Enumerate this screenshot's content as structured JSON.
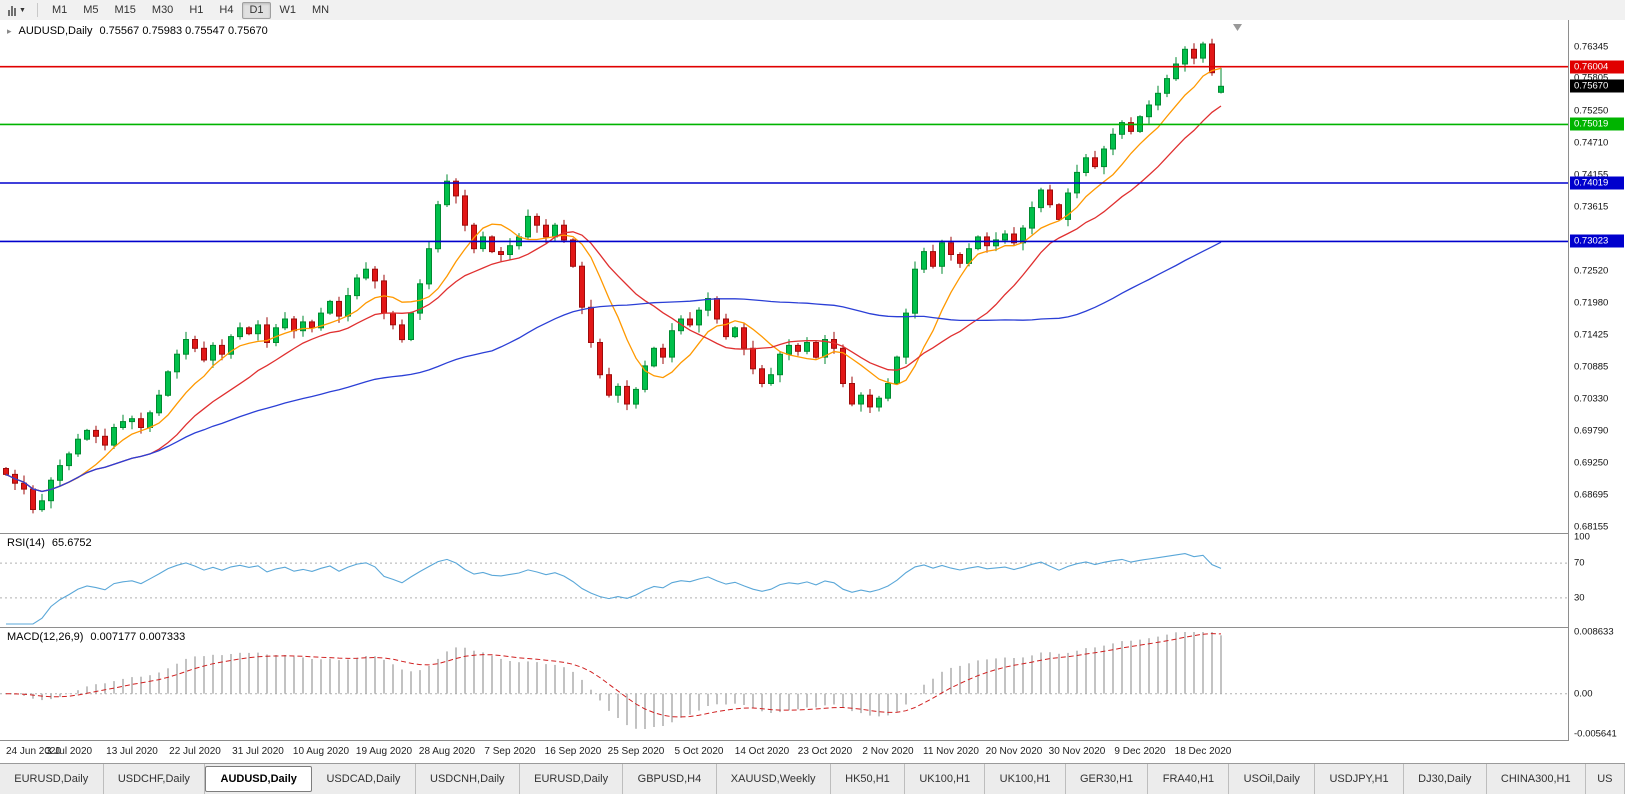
{
  "icons": {
    "chart_type_caret": "▼",
    "one_click_arrow": "▸"
  },
  "toolbar": {
    "timeframes": [
      "M1",
      "M5",
      "M15",
      "M30",
      "H1",
      "H4",
      "D1",
      "W1",
      "MN"
    ],
    "selected": "D1"
  },
  "chart_header": {
    "symbol": "AUDUSD,Daily",
    "ohlc": "0.75567 0.75983 0.75547 0.75670"
  },
  "chart_data": {
    "type": "candlestick",
    "symbol": "AUDUSD",
    "timeframe": "Daily",
    "ylim": [
      0.6805,
      0.768
    ],
    "first_open": 0.6915,
    "closes": [
      0.6905,
      0.689,
      0.688,
      0.6845,
      0.686,
      0.6895,
      0.692,
      0.694,
      0.6965,
      0.698,
      0.697,
      0.6955,
      0.6985,
      0.6995,
      0.7,
      0.6985,
      0.701,
      0.704,
      0.708,
      0.711,
      0.7135,
      0.712,
      0.71,
      0.7125,
      0.711,
      0.714,
      0.7155,
      0.7145,
      0.716,
      0.713,
      0.7155,
      0.717,
      0.715,
      0.7165,
      0.7155,
      0.718,
      0.72,
      0.7175,
      0.721,
      0.724,
      0.7255,
      0.7235,
      0.718,
      0.716,
      0.7135,
      0.718,
      0.723,
      0.729,
      0.7365,
      0.7405,
      0.738,
      0.733,
      0.729,
      0.731,
      0.7285,
      0.728,
      0.7295,
      0.731,
      0.7345,
      0.733,
      0.731,
      0.733,
      0.7305,
      0.726,
      0.719,
      0.713,
      0.7075,
      0.704,
      0.7055,
      0.7025,
      0.705,
      0.709,
      0.712,
      0.7105,
      0.715,
      0.717,
      0.716,
      0.7185,
      0.7205,
      0.717,
      0.714,
      0.7155,
      0.712,
      0.7085,
      0.706,
      0.7075,
      0.711,
      0.7125,
      0.7115,
      0.713,
      0.7105,
      0.7135,
      0.712,
      0.706,
      0.7025,
      0.704,
      0.702,
      0.7035,
      0.706,
      0.7105,
      0.718,
      0.7255,
      0.7285,
      0.726,
      0.73,
      0.728,
      0.7265,
      0.729,
      0.731,
      0.7295,
      0.7305,
      0.7315,
      0.73,
      0.7325,
      0.736,
      0.739,
      0.7365,
      0.734,
      0.7385,
      0.742,
      0.7445,
      0.743,
      0.746,
      0.7485,
      0.7505,
      0.749,
      0.7515,
      0.7535,
      0.7555,
      0.758,
      0.7605,
      0.763,
      0.7615,
      0.7639,
      0.759,
      0.7567
    ],
    "last_bar": [
      0.75567,
      0.75983,
      0.75547,
      0.7567
    ],
    "candle_colors": {
      "up": "#00c04b",
      "up_stroke": "#008a30",
      "down": "#e21717",
      "down_stroke": "#9e0b0b"
    },
    "moving_averages": [
      {
        "period": 8,
        "color": "#ff9900"
      },
      {
        "period": 17,
        "color": "#e03030"
      },
      {
        "period": 55,
        "color": "#2b3fd6"
      }
    ],
    "levels": [
      {
        "price": 0.76004,
        "label": "0.76004",
        "color": "#e00000"
      },
      {
        "price": 0.75019,
        "label": "0.75019",
        "color": "#00b400"
      },
      {
        "price": 0.74019,
        "label": "0.74019",
        "color": "#0000cd"
      },
      {
        "price": 0.73023,
        "label": "0.73023",
        "color": "#0000cd"
      }
    ],
    "current_price": {
      "price": 0.7567,
      "label": "0.75670",
      "color": "#000000"
    },
    "y_ticks": [
      "0.76345",
      "0.75805",
      "0.75250",
      "0.74710",
      "0.74155",
      "0.73615",
      "0.73070",
      "0.72520",
      "0.71980",
      "0.71425",
      "0.70885",
      "0.70330",
      "0.69790",
      "0.69250",
      "0.68695",
      "0.68155"
    ],
    "x_dates": [
      {
        "label": "24 Jun 2020",
        "candle": 0
      },
      {
        "label": "3 Jul 2020",
        "candle": 7
      },
      {
        "label": "13 Jul 2020",
        "candle": 14
      },
      {
        "label": "22 Jul 2020",
        "candle": 21
      },
      {
        "label": "31 Jul 2020",
        "candle": 28
      },
      {
        "label": "10 Aug 2020",
        "candle": 35
      },
      {
        "label": "19 Aug 2020",
        "candle": 42
      },
      {
        "label": "28 Aug 2020",
        "candle": 49
      },
      {
        "label": "7 Sep 2020",
        "candle": 56
      },
      {
        "label": "16 Sep 2020",
        "candle": 63
      },
      {
        "label": "25 Sep 2020",
        "candle": 70
      },
      {
        "label": "5 Oct 2020",
        "candle": 77
      },
      {
        "label": "14 Oct 2020",
        "candle": 84
      },
      {
        "label": "23 Oct 2020",
        "candle": 91
      },
      {
        "label": "2 Nov 2020",
        "candle": 98
      },
      {
        "label": "11 Nov 2020",
        "candle": 105
      },
      {
        "label": "20 Nov 2020",
        "candle": 112
      },
      {
        "label": "30 Nov 2020",
        "candle": 119
      },
      {
        "label": "9 Dec 2020",
        "candle": 126
      },
      {
        "label": "18 Dec 2020",
        "candle": 133
      }
    ],
    "rsi": {
      "label": "RSI(14)",
      "value": "65.6752",
      "period": 14,
      "levels": [
        30,
        70
      ],
      "axis_values": [
        100,
        70,
        30
      ],
      "axis_labels": [
        "100",
        "70",
        "30"
      ],
      "line_color": "#5aa7d8",
      "level_color": "#b0b0b0"
    },
    "macd": {
      "label": "MACD(12,26,9)",
      "values": "0.007177 0.007333",
      "fast": 12,
      "slow": 26,
      "signal_period": 9,
      "vmin": -0.005641,
      "vmax": 0.008633,
      "axis_labels": [
        "0.008633",
        "0.00",
        "-0.005641"
      ],
      "hist_color": "#a9a9a9",
      "signal_color": "#d02020",
      "zero_color": "#b0b0b0"
    },
    "render": {
      "spacing": 9,
      "body_width": 5,
      "x_start": 6
    }
  },
  "tabs": {
    "items": [
      "EURUSD,Daily",
      "USDCHF,Daily",
      "AUDUSD,Daily",
      "USDCAD,Daily",
      "USDCNH,Daily",
      "EURUSD,Daily",
      "GBPUSD,H4",
      "XAUUSD,Weekly",
      "HK50,H1",
      "UK100,H1",
      "UK100,H1",
      "GER30,H1",
      "FRA40,H1",
      "USOil,Daily",
      "USDJPY,H1",
      "DJ30,Daily",
      "CHINA300,H1",
      "US"
    ],
    "active_index": 2
  }
}
